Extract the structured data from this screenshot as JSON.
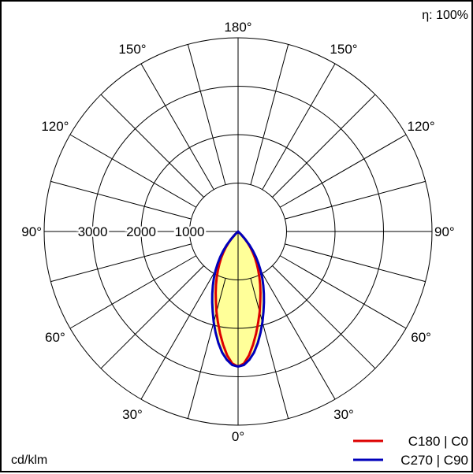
{
  "efficiency_label": "η: 100%",
  "unit_label": "cd/klm",
  "chart_data": {
    "type": "polar",
    "angle_tick_labels": {
      "180": "180°",
      "150": "150°",
      "120": "120°",
      "90": "90°",
      "60": "60°",
      "30": "30°",
      "0": "0°"
    },
    "radial_ticks": [
      1000,
      2000,
      3000
    ],
    "radial_tick_labels": [
      "1000",
      "2000",
      "3000"
    ],
    "r_max": 4000,
    "angle_step_deg": 15,
    "fill_color": "#ffff99",
    "legend": [
      {
        "label": "C180 | C0",
        "color": "#dd0000"
      },
      {
        "label": "C270 | C90",
        "color": "#0000bb"
      }
    ],
    "series": [
      {
        "name": "C180 | C0",
        "color": "#dd0000",
        "angles_deg": [
          0,
          2.5,
          5,
          7.5,
          10,
          12.5,
          15,
          17.5,
          20,
          22.5,
          25,
          27.5,
          30,
          32.5,
          35,
          37.5,
          40,
          42.5,
          45,
          90
        ],
        "values": [
          2790,
          2730,
          2570,
          2360,
          2140,
          1920,
          1720,
          1520,
          1350,
          1190,
          1040,
          900,
          770,
          650,
          530,
          420,
          310,
          200,
          100,
          0
        ]
      },
      {
        "name": "C270 | C90",
        "color": "#0000bb",
        "angles_deg": [
          0,
          2.5,
          5,
          7.5,
          10,
          12.5,
          15,
          17.5,
          20,
          22.5,
          25,
          27.5,
          30,
          32.5,
          35,
          37.5,
          40,
          42.5,
          45,
          90
        ],
        "values": [
          2790,
          2760,
          2660,
          2520,
          2340,
          2140,
          1940,
          1740,
          1560,
          1390,
          1230,
          1080,
          930,
          780,
          640,
          500,
          360,
          220,
          100,
          0
        ]
      }
    ]
  }
}
